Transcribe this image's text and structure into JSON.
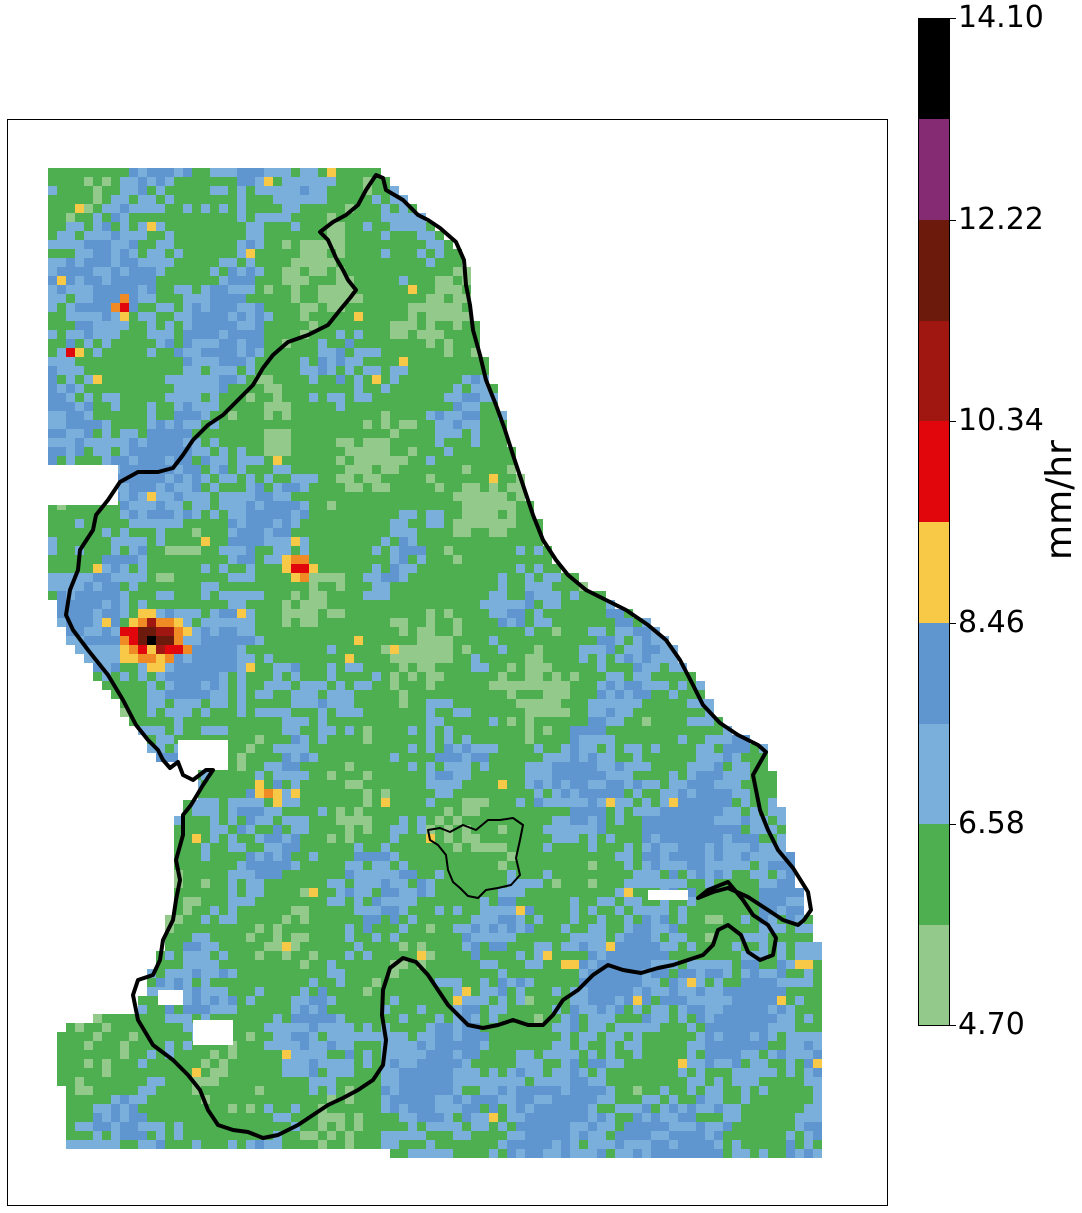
{
  "colorbar": {
    "unit_label": "mm/hr",
    "ticks": [
      "14.10",
      "12.22",
      "10.34",
      "8.46",
      "6.58",
      "4.70"
    ],
    "min": 4.7,
    "max": 14.1,
    "bins": [
      {
        "lower": 4.7,
        "upper": 5.875,
        "color": "#93c98a"
      },
      {
        "lower": 5.875,
        "upper": 7.05,
        "color": "#4daf4f"
      },
      {
        "lower": 7.05,
        "upper": 8.225,
        "color": "#7aafdc"
      },
      {
        "lower": 8.225,
        "upper": 9.4,
        "color": "#5f96d0"
      },
      {
        "lower": 9.4,
        "upper": 10.575,
        "color": "#f7c947"
      },
      {
        "lower": 10.575,
        "upper": 11.75,
        "color": "#e0060b"
      },
      {
        "lower": 11.75,
        "upper": 12.925,
        "color": "#a01610"
      },
      {
        "lower": 12.925,
        "upper": 14.1,
        "color": "#6b1a0c"
      }
    ],
    "extra_colors": {
      "purple": "#842b74",
      "black": "#000000"
    }
  },
  "map": {
    "dominant_category": "green",
    "hotspot_colors": [
      "#f7c947",
      "#f08a25",
      "#e0060b",
      "#a01610",
      "#000000"
    ],
    "boundary_color": "#000000",
    "background": "#ffffff"
  }
}
